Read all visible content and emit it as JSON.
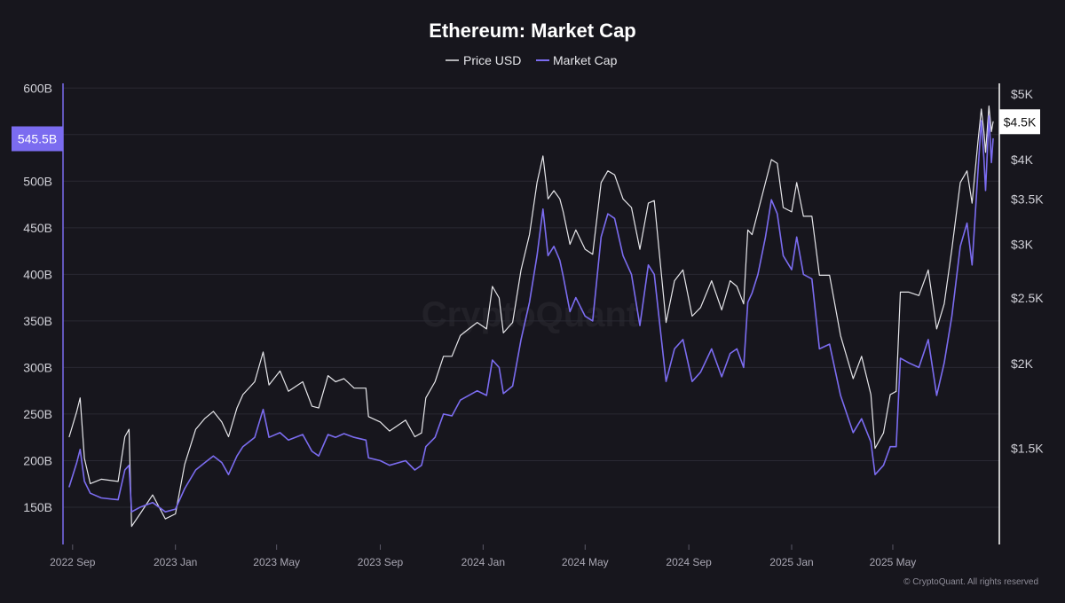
{
  "chart_data": {
    "type": "line",
    "title": "Ethereum: Market Cap",
    "legend": {
      "placement": "top-center",
      "items": [
        {
          "name": "Price USD",
          "color": "#e6e6ea"
        },
        {
          "name": "Market Cap",
          "color": "#7b6cf0"
        }
      ]
    },
    "x": {
      "tick_labels": [
        "2022 Sep",
        "2023 Jan",
        "2023 May",
        "2023 Sep",
        "2024 Jan",
        "2024 May",
        "2024 Sep",
        "2025 Jan",
        "2025 May"
      ],
      "tick_dates": [
        "2022-09-01",
        "2023-01-01",
        "2023-05-01",
        "2023-09-01",
        "2024-01-01",
        "2024-05-01",
        "2024-09-01",
        "2025-01-01",
        "2025-05-01"
      ],
      "range": [
        "2022-08-28",
        "2025-08-28"
      ]
    },
    "y_left": {
      "label": "",
      "scale": "linear",
      "range": [
        110,
        605
      ],
      "unit_suffix": "B",
      "tick_values": [
        150,
        200,
        250,
        300,
        350,
        400,
        450,
        500,
        600
      ],
      "tick_labels": [
        "150B",
        "200B",
        "250B",
        "300B",
        "350B",
        "400B",
        "450B",
        "500B",
        "600B"
      ]
    },
    "y_right": {
      "label": "",
      "scale": "log",
      "range": [
        1000,
        5000
      ],
      "tick_values": [
        1500,
        2000,
        2500,
        3000,
        3500,
        4000,
        5000
      ],
      "tick_labels": [
        "$1.5K",
        "$2K",
        "$2.5K",
        "$3K",
        "$3.5K",
        "$4K",
        "$5K"
      ]
    },
    "grid": {
      "horizontal": true,
      "vertical": false
    },
    "current_labels": {
      "market_cap": "545.5B",
      "price": "$4.5K"
    },
    "series": [
      {
        "name": "Market Cap",
        "axis": "left",
        "color": "#7b6cf0",
        "points": [
          [
            "2022-08-28",
            172
          ],
          [
            "2022-09-06",
            198
          ],
          [
            "2022-09-10",
            212
          ],
          [
            "2022-09-15",
            178
          ],
          [
            "2022-09-22",
            165
          ],
          [
            "2022-10-05",
            160
          ],
          [
            "2022-10-25",
            158
          ],
          [
            "2022-11-02",
            190
          ],
          [
            "2022-11-07",
            195
          ],
          [
            "2022-11-10",
            145
          ],
          [
            "2022-11-20",
            150
          ],
          [
            "2022-12-05",
            155
          ],
          [
            "2022-12-20",
            145
          ],
          [
            "2023-01-01",
            148
          ],
          [
            "2023-01-12",
            170
          ],
          [
            "2023-01-25",
            190
          ],
          [
            "2023-02-05",
            198
          ],
          [
            "2023-02-15",
            205
          ],
          [
            "2023-02-25",
            198
          ],
          [
            "2023-03-05",
            185
          ],
          [
            "2023-03-15",
            205
          ],
          [
            "2023-03-22",
            215
          ],
          [
            "2023-04-05",
            225
          ],
          [
            "2023-04-15",
            255
          ],
          [
            "2023-04-22",
            225
          ],
          [
            "2023-05-05",
            230
          ],
          [
            "2023-05-15",
            222
          ],
          [
            "2023-06-01",
            228
          ],
          [
            "2023-06-12",
            210
          ],
          [
            "2023-06-20",
            205
          ],
          [
            "2023-07-01",
            228
          ],
          [
            "2023-07-10",
            225
          ],
          [
            "2023-07-20",
            229
          ],
          [
            "2023-08-01",
            225
          ],
          [
            "2023-08-15",
            222
          ],
          [
            "2023-08-18",
            203
          ],
          [
            "2023-09-01",
            200
          ],
          [
            "2023-09-12",
            195
          ],
          [
            "2023-10-01",
            200
          ],
          [
            "2023-10-12",
            190
          ],
          [
            "2023-10-20",
            195
          ],
          [
            "2023-10-25",
            215
          ],
          [
            "2023-11-05",
            225
          ],
          [
            "2023-11-15",
            250
          ],
          [
            "2023-11-25",
            248
          ],
          [
            "2023-12-05",
            265
          ],
          [
            "2023-12-15",
            270
          ],
          [
            "2023-12-25",
            275
          ],
          [
            "2024-01-05",
            270
          ],
          [
            "2024-01-12",
            308
          ],
          [
            "2024-01-20",
            300
          ],
          [
            "2024-01-25",
            272
          ],
          [
            "2024-02-05",
            280
          ],
          [
            "2024-02-15",
            330
          ],
          [
            "2024-02-25",
            370
          ],
          [
            "2024-03-05",
            420
          ],
          [
            "2024-03-12",
            470
          ],
          [
            "2024-03-18",
            420
          ],
          [
            "2024-03-25",
            430
          ],
          [
            "2024-04-01",
            415
          ],
          [
            "2024-04-05",
            398
          ],
          [
            "2024-04-13",
            360
          ],
          [
            "2024-04-20",
            375
          ],
          [
            "2024-05-01",
            355
          ],
          [
            "2024-05-10",
            350
          ],
          [
            "2024-05-20",
            440
          ],
          [
            "2024-05-28",
            465
          ],
          [
            "2024-06-05",
            460
          ],
          [
            "2024-06-15",
            420
          ],
          [
            "2024-06-25",
            400
          ],
          [
            "2024-07-05",
            345
          ],
          [
            "2024-07-15",
            410
          ],
          [
            "2024-07-22",
            400
          ],
          [
            "2024-08-05",
            285
          ],
          [
            "2024-08-15",
            320
          ],
          [
            "2024-08-25",
            330
          ],
          [
            "2024-09-05",
            285
          ],
          [
            "2024-09-15",
            295
          ],
          [
            "2024-09-28",
            320
          ],
          [
            "2024-10-10",
            290
          ],
          [
            "2024-10-20",
            315
          ],
          [
            "2024-10-28",
            320
          ],
          [
            "2024-11-05",
            300
          ],
          [
            "2024-11-10",
            370
          ],
          [
            "2024-11-15",
            380
          ],
          [
            "2024-11-22",
            400
          ],
          [
            "2024-12-01",
            440
          ],
          [
            "2024-12-08",
            480
          ],
          [
            "2024-12-15",
            465
          ],
          [
            "2024-12-22",
            420
          ],
          [
            "2025-01-01",
            405
          ],
          [
            "2025-01-07",
            440
          ],
          [
            "2025-01-15",
            400
          ],
          [
            "2025-01-25",
            395
          ],
          [
            "2025-02-03",
            320
          ],
          [
            "2025-02-15",
            325
          ],
          [
            "2025-02-28",
            270
          ],
          [
            "2025-03-15",
            230
          ],
          [
            "2025-03-25",
            245
          ],
          [
            "2025-04-05",
            220
          ],
          [
            "2025-04-10",
            185
          ],
          [
            "2025-04-20",
            195
          ],
          [
            "2025-04-28",
            215
          ],
          [
            "2025-05-05",
            215
          ],
          [
            "2025-05-10",
            310
          ],
          [
            "2025-05-20",
            305
          ],
          [
            "2025-06-01",
            300
          ],
          [
            "2025-06-12",
            330
          ],
          [
            "2025-06-22",
            270
          ],
          [
            "2025-07-01",
            305
          ],
          [
            "2025-07-10",
            355
          ],
          [
            "2025-07-20",
            430
          ],
          [
            "2025-07-28",
            455
          ],
          [
            "2025-08-03",
            410
          ],
          [
            "2025-08-10",
            510
          ],
          [
            "2025-08-14",
            565
          ],
          [
            "2025-08-17",
            525
          ],
          [
            "2025-08-19",
            490
          ],
          [
            "2025-08-23",
            570
          ],
          [
            "2025-08-26",
            520
          ],
          [
            "2025-08-28",
            545.5
          ]
        ]
      },
      {
        "name": "Price USD",
        "axis": "right",
        "color": "#e6e6ea",
        "points": [
          [
            "2022-08-28",
            1560
          ],
          [
            "2022-09-06",
            1700
          ],
          [
            "2022-09-10",
            1780
          ],
          [
            "2022-09-15",
            1450
          ],
          [
            "2022-09-22",
            1330
          ],
          [
            "2022-10-05",
            1350
          ],
          [
            "2022-10-25",
            1340
          ],
          [
            "2022-11-02",
            1560
          ],
          [
            "2022-11-07",
            1600
          ],
          [
            "2022-11-10",
            1150
          ],
          [
            "2022-11-20",
            1200
          ],
          [
            "2022-12-05",
            1280
          ],
          [
            "2022-12-20",
            1180
          ],
          [
            "2023-01-01",
            1200
          ],
          [
            "2023-01-12",
            1420
          ],
          [
            "2023-01-25",
            1600
          ],
          [
            "2023-02-05",
            1660
          ],
          [
            "2023-02-15",
            1700
          ],
          [
            "2023-02-25",
            1640
          ],
          [
            "2023-03-05",
            1560
          ],
          [
            "2023-03-15",
            1720
          ],
          [
            "2023-03-22",
            1800
          ],
          [
            "2023-04-05",
            1880
          ],
          [
            "2023-04-15",
            2080
          ],
          [
            "2023-04-22",
            1860
          ],
          [
            "2023-05-05",
            1950
          ],
          [
            "2023-05-15",
            1820
          ],
          [
            "2023-06-01",
            1880
          ],
          [
            "2023-06-12",
            1730
          ],
          [
            "2023-06-20",
            1720
          ],
          [
            "2023-07-01",
            1920
          ],
          [
            "2023-07-10",
            1880
          ],
          [
            "2023-07-20",
            1900
          ],
          [
            "2023-08-01",
            1840
          ],
          [
            "2023-08-15",
            1840
          ],
          [
            "2023-08-18",
            1670
          ],
          [
            "2023-09-01",
            1640
          ],
          [
            "2023-09-12",
            1590
          ],
          [
            "2023-10-01",
            1650
          ],
          [
            "2023-10-12",
            1560
          ],
          [
            "2023-10-20",
            1580
          ],
          [
            "2023-10-25",
            1780
          ],
          [
            "2023-11-05",
            1880
          ],
          [
            "2023-11-15",
            2050
          ],
          [
            "2023-11-25",
            2050
          ],
          [
            "2023-12-05",
            2200
          ],
          [
            "2023-12-15",
            2250
          ],
          [
            "2023-12-25",
            2300
          ],
          [
            "2024-01-05",
            2250
          ],
          [
            "2024-01-12",
            2600
          ],
          [
            "2024-01-20",
            2500
          ],
          [
            "2024-01-25",
            2220
          ],
          [
            "2024-02-05",
            2300
          ],
          [
            "2024-02-15",
            2750
          ],
          [
            "2024-02-25",
            3100
          ],
          [
            "2024-03-05",
            3700
          ],
          [
            "2024-03-12",
            4050
          ],
          [
            "2024-03-18",
            3500
          ],
          [
            "2024-03-25",
            3600
          ],
          [
            "2024-04-01",
            3500
          ],
          [
            "2024-04-05",
            3350
          ],
          [
            "2024-04-13",
            3000
          ],
          [
            "2024-04-20",
            3150
          ],
          [
            "2024-05-01",
            2950
          ],
          [
            "2024-05-10",
            2900
          ],
          [
            "2024-05-20",
            3700
          ],
          [
            "2024-05-28",
            3850
          ],
          [
            "2024-06-05",
            3800
          ],
          [
            "2024-06-15",
            3500
          ],
          [
            "2024-06-25",
            3400
          ],
          [
            "2024-07-05",
            2950
          ],
          [
            "2024-07-15",
            3450
          ],
          [
            "2024-07-22",
            3480
          ],
          [
            "2024-08-05",
            2300
          ],
          [
            "2024-08-15",
            2650
          ],
          [
            "2024-08-25",
            2750
          ],
          [
            "2024-09-05",
            2350
          ],
          [
            "2024-09-15",
            2420
          ],
          [
            "2024-09-28",
            2650
          ],
          [
            "2024-10-10",
            2400
          ],
          [
            "2024-10-20",
            2650
          ],
          [
            "2024-10-28",
            2600
          ],
          [
            "2024-11-05",
            2450
          ],
          [
            "2024-11-10",
            3150
          ],
          [
            "2024-11-15",
            3100
          ],
          [
            "2024-11-22",
            3350
          ],
          [
            "2024-12-01",
            3700
          ],
          [
            "2024-12-08",
            4000
          ],
          [
            "2024-12-15",
            3950
          ],
          [
            "2024-12-22",
            3400
          ],
          [
            "2025-01-01",
            3350
          ],
          [
            "2025-01-07",
            3700
          ],
          [
            "2025-01-15",
            3300
          ],
          [
            "2025-01-25",
            3300
          ],
          [
            "2025-02-03",
            2700
          ],
          [
            "2025-02-15",
            2700
          ],
          [
            "2025-02-28",
            2200
          ],
          [
            "2025-03-15",
            1900
          ],
          [
            "2025-03-25",
            2050
          ],
          [
            "2025-04-05",
            1800
          ],
          [
            "2025-04-10",
            1500
          ],
          [
            "2025-04-20",
            1580
          ],
          [
            "2025-04-28",
            1800
          ],
          [
            "2025-05-05",
            1820
          ],
          [
            "2025-05-10",
            2550
          ],
          [
            "2025-05-20",
            2550
          ],
          [
            "2025-06-01",
            2520
          ],
          [
            "2025-06-12",
            2750
          ],
          [
            "2025-06-22",
            2250
          ],
          [
            "2025-07-01",
            2450
          ],
          [
            "2025-07-10",
            2950
          ],
          [
            "2025-07-20",
            3700
          ],
          [
            "2025-07-28",
            3850
          ],
          [
            "2025-08-03",
            3450
          ],
          [
            "2025-08-10",
            4250
          ],
          [
            "2025-08-14",
            4750
          ],
          [
            "2025-08-17",
            4400
          ],
          [
            "2025-08-19",
            4100
          ],
          [
            "2025-08-23",
            4800
          ],
          [
            "2025-08-26",
            4400
          ],
          [
            "2025-08-28",
            4550
          ]
        ]
      }
    ]
  },
  "footer": {
    "credit": "© CryptoQuant. All rights reserved",
    "watermark": "CryptoQuant"
  }
}
